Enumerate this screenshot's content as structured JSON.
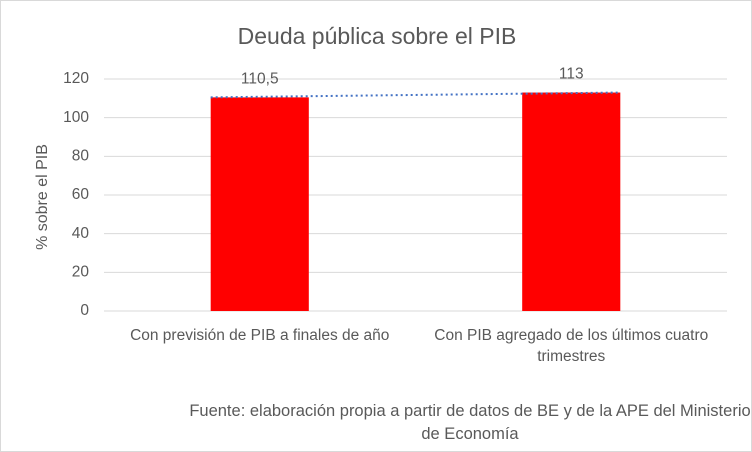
{
  "chart_data": {
    "type": "bar",
    "title": "Deuda pública sobre el PIB",
    "y_label": "% sobre el PIB",
    "categories": [
      "Con previsión de PIB a finales de año",
      "Con PIB agregado de los últimos cuatro trimestres"
    ],
    "values": [
      110.5,
      113
    ],
    "value_labels": [
      "110,5",
      "113"
    ],
    "color": "#ff0000",
    "trendline_color": "#4472c4",
    "ylim": [
      0,
      120
    ],
    "yticks": [
      0,
      20,
      40,
      60,
      80,
      100,
      120
    ],
    "grid": true,
    "source": "Fuente: elaboración propia a partir de datos de BE y de la APE del Ministerio de Economía"
  }
}
